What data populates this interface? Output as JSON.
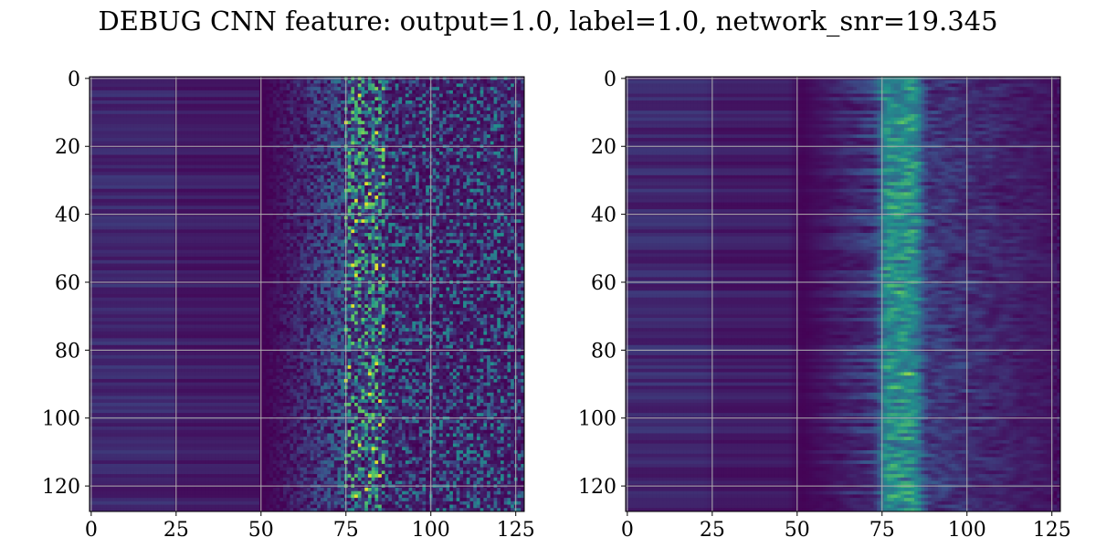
{
  "figure": {
    "title": "DEBUG CNN feature: output=1.0, label=1.0, network_snr=19.345"
  },
  "chart_data": [
    {
      "type": "heatmap",
      "title": "",
      "xlabel": "",
      "ylabel": "",
      "xlim": [
        0,
        127
      ],
      "ylim": [
        127,
        0
      ],
      "x_ticks": [
        0,
        25,
        50,
        75,
        100,
        125
      ],
      "y_ticks": [
        0,
        20,
        40,
        60,
        80,
        100,
        120
      ],
      "grid": true,
      "colormap": "viridis",
      "shape": [
        128,
        128
      ],
      "description_of_values": "Columns 0-50 near-zero horizontal stripes; columns 50-128 noisy activations with a bright vertical band around columns 78-85"
    },
    {
      "type": "heatmap",
      "title": "",
      "xlabel": "",
      "ylabel": "",
      "xlim": [
        0,
        127
      ],
      "ylim": [
        127,
        0
      ],
      "x_ticks": [
        0,
        25,
        50,
        75,
        100,
        125
      ],
      "y_ticks": [
        0,
        20,
        40,
        60,
        80,
        100,
        120
      ],
      "grid": true,
      "colormap": "viridis",
      "shape": [
        128,
        128
      ],
      "description_of_values": "Smoother activations; low values left of column 50, horizontal streaks between columns 55-120 with brightest band around columns 78-85"
    }
  ],
  "colors": {
    "viridis_low": "#440154",
    "viridis_mid_low": "#3b528b",
    "viridis_mid": "#21918c",
    "viridis_mid_high": "#5ec962",
    "viridis_high": "#fde725",
    "grid": "#b0b0b0"
  }
}
